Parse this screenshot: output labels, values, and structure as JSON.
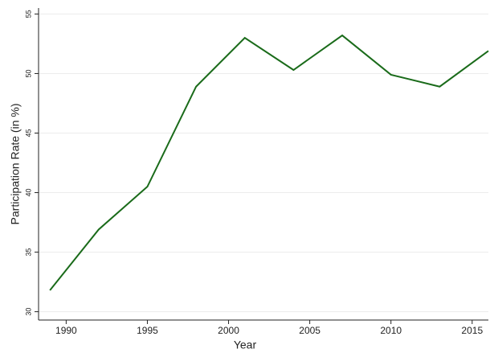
{
  "chart_data": {
    "type": "line",
    "x_label": "Year",
    "y_label": "Participation Rate (in %)",
    "x": [
      1989,
      1992,
      1995,
      1998,
      2001,
      2004,
      2007,
      2010,
      2013,
      2016
    ],
    "series": [
      {
        "color": "#1a6b1a",
        "values": [
          31.8,
          36.9,
          40.5,
          48.9,
          53.0,
          50.3,
          53.2,
          49.9,
          48.9,
          51.9
        ]
      }
    ],
    "xlim": [
      1988.3,
      2016
    ],
    "xticks": [
      1990,
      1995,
      2000,
      2005,
      2010,
      2015
    ],
    "ylim": [
      29.3,
      55.5
    ],
    "yticks": [
      30,
      35,
      40,
      45,
      50,
      55
    ],
    "grid": true
  }
}
